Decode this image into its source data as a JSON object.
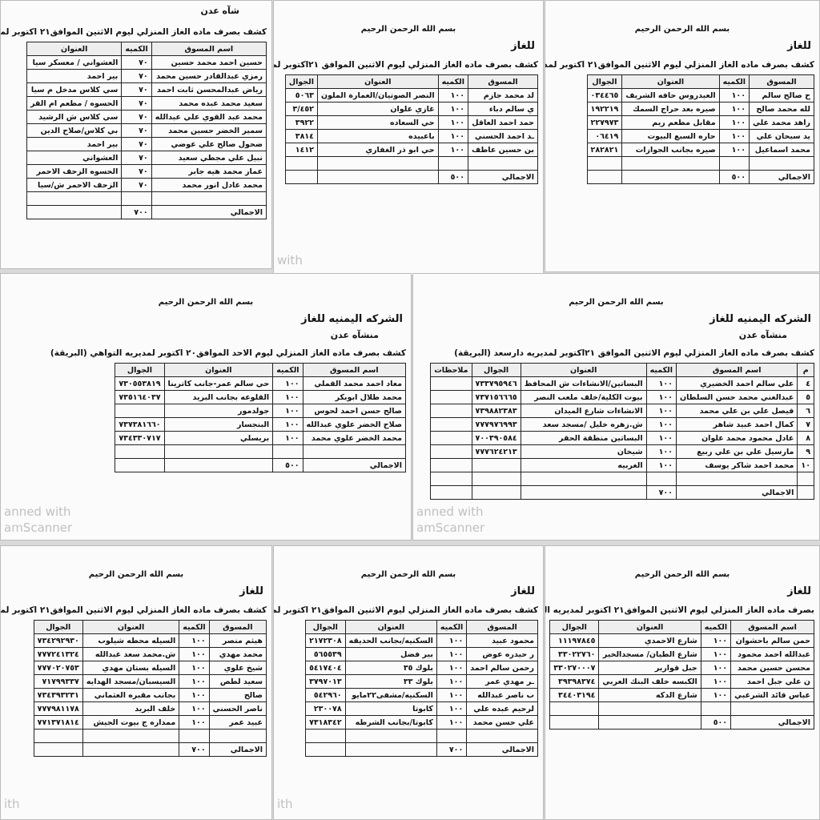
{
  "panels": [
    {
      "branch": "شآه عدن",
      "title": "كشف بصرف ماده الغاز المنزلي ليوم الاثنين  الموافق٢١ اكتوبر لمد",
      "columns": [
        "اسم المسوق",
        "الكميه",
        "العنوان"
      ],
      "rows": [
        [
          "حسين احمد محمد حسين",
          "٧٠",
          "العشواني / معسكر سيا"
        ],
        [
          "رمزي عبدالقادر حسين محمد",
          "٧٠",
          "بير احمد"
        ],
        [
          "رياض عبدالمحسن ثابت احمد",
          "٧٠",
          "سي كلاس مدخل م سيا"
        ],
        [
          "سعيد محمد عبده محمد",
          "٧٠",
          "الحسوه / مطعم ام القر"
        ],
        [
          "محمد عبد القوي علي عبدالله",
          "٧٠",
          "سي كلاس ش الرشيد"
        ],
        [
          "سمير الخضر حسين محمد",
          "٧٠",
          "بي كلاس/صلاح الدين"
        ],
        [
          "ضحول صالح علي عوضي",
          "٧٠",
          "بير احمد"
        ],
        [
          "نبيل علي مجطي سعيد",
          "٧٠",
          "العشواني"
        ],
        [
          "عمار محمد هيه جابر",
          "٧٠",
          "الحسوه الزحف الاحمر"
        ],
        [
          "محمد عادل انور محمد",
          "٧٠",
          "الزحف الاحمر ش/سيا"
        ]
      ],
      "total_label": "الاجمالي",
      "total": "٧٠٠"
    },
    {
      "basmala": "بسم الله الرحمن الرحيم",
      "company": "للغاز",
      "title": "كشف بصرف ماده الغاز المنزلي ليوم الاثنين  الموافق ٢١اكتوبر لمديريه خورمكسر",
      "columns": [
        "المسوق",
        "الكميه",
        "العنوان",
        "الجوال"
      ],
      "rows": [
        [
          "لد محمد جازم",
          "١٠٠",
          "النصر الصوتيان/العمارة الملون",
          "٥٠٦٣"
        ],
        [
          "ي سالم دباء",
          "١٠٠",
          "غازي علوان",
          "٣/٤٥٢"
        ],
        [
          "حمد احمد العاقل",
          "١٠٠",
          "حي السعاده",
          "٣٩٢٢"
        ],
        [
          "ـد احمد الحسني",
          "١٠٠",
          "باعبيده",
          "٣٨١٤"
        ],
        [
          "بن حسين عاطف",
          "١٠٠",
          "حي ابو ذر الغفاري",
          "١٤١٢"
        ]
      ],
      "total_label": "الاجمالي",
      "total": "٥٠٠",
      "watermark": [
        "with"
      ]
    },
    {
      "basmala": "بسم الله الرحمن الرحيم",
      "company": "للغاز",
      "title": "كشف بصرف ماده الغاز المنزلي ليوم الاثنين الموافق٢١ اكتوبر لمديريه صيره (البريـ",
      "columns": [
        "المسوق",
        "الكميه",
        "العنوان",
        "الجوال"
      ],
      "rows": [
        [
          "ح صالح سالم",
          "١٠٠",
          "العيدروس حافه الشريف",
          "٠٣٤٤٦٥"
        ],
        [
          "لله محمد صالح",
          "١٠٠",
          "صيره بعد حراج السمك",
          "١٩٢٢١٩"
        ],
        [
          "راهد محمد علي",
          "١٠٠",
          "مقابل مطعم ريم",
          "٢٢٧٩٧٣"
        ],
        [
          "يد سبحان علي",
          "١٠٠",
          "حاره السبع البيوت",
          "٠٦٤١٩"
        ],
        [
          "محمد اسماعيل",
          "١٠٠",
          "صيره بجانب الجوازات",
          "٢٨٢٨٢١"
        ]
      ],
      "total_label": "الاجمالي",
      "total": "٥٠٠"
    },
    {
      "basmala": "بسم الله الرحمن الرحيم",
      "company": "الشركه اليمنيه للغاز",
      "branch": "منشآه عدن",
      "title": "كشف بصرف ماده الغاز المنزلي ليوم الاحد الموافق٢٠ اكتوبر لمديريه التواهي (البريقة)",
      "columns": [
        "اسم المسوق",
        "الكميه",
        "العنوان",
        "الجوال"
      ],
      "rows": [
        [
          "معاد احمد محمد القملي",
          "١٠٠",
          "حي سالم عمر-جانب كاترينا",
          "٧٣٠٥٥٣٨١٩"
        ],
        [
          "محمد طلال ابوبكر",
          "١٠٠",
          "القلوعه بجانب البريد",
          "٧٣٥١٦٤٠٣٧"
        ],
        [
          "صالح حسن احمد لحوس",
          "١٠٠",
          "جولدمور",
          null
        ],
        [
          "صلاح الخضر علوي عبدالله",
          "١٠٠",
          "البنجسار",
          "٧٣٧٣٨١٦٦٠"
        ],
        [
          "محمد الخضر علوي محمد",
          "١٠٠",
          "بريسلي",
          "٧٣٤٣٣٠٧١٧"
        ]
      ],
      "total_label": "الاجمالي",
      "total": "٥٠٠",
      "watermark": [
        "anned with",
        "amScanner"
      ]
    },
    {
      "basmala": "بسم الله الرحمن الرحيم",
      "company": "الشركه اليمنيه للغاز",
      "branch": "منشآه عدن",
      "title": "كشف بصرف ماده الغاز المنزلي ليوم الاثنين الموافق ٢١اكتوبر لمديريه دارسعد (البريقة)",
      "columns": [
        "م",
        "اسم المسوق",
        "الكميه",
        "العنوان",
        "الجوال",
        "ملاحظات"
      ],
      "rows": [
        [
          "٤",
          "علي سالم احمد الخضيري",
          "١٠٠",
          "البساتين/الانشاءات ش المحافظ",
          "٧٣٣٧٩٥٩٤٦",
          null
        ],
        [
          "٥",
          "عبدالغني محمد حسن السلطان",
          "١٠٠",
          "بيوت الكلية/خلف ملعب النصر",
          "٧٣٧١٥٦٦٦٥",
          null
        ],
        [
          "٦",
          "فيصل علي بن علي محمد",
          "١٠٠",
          "الانشاءات شارع الميدان",
          "٧٣٩٨٨٢٣٨٣",
          null
        ],
        [
          "٧",
          "كمال احمد عبيد شاهر",
          "١٠٠",
          "ش.زهره خليل /مسجد سعد",
          "٧٧٧٩٧٦٩٩٣",
          null
        ],
        [
          "٨",
          "عادل محمود محمد علوان",
          "١٠٠",
          "البساتين منطقة الحقر",
          "٧٠٠٣٩٠٥٨٤",
          null
        ],
        [
          "٩",
          "مارسيل علي بن علي ربيع",
          "١٠٠",
          "شيخان",
          "٧٧٧٦٢٤٢١٣",
          null
        ],
        [
          "١٠",
          "محمد احمد شاكر يوسف",
          "١٠٠",
          "الغربيه",
          null,
          null
        ]
      ],
      "total_label": "الاجمالي",
      "total": "٧٠٠",
      "watermark": [
        "anned with",
        "amScanner"
      ]
    },
    {
      "basmala": "بسم الله الرحمن الرحيم",
      "company": "للغاز",
      "title": "كشف بصرف ماده الغاز المنزلي ليوم الاثنين الموافق٢١ اكتوبر لمديريه الشيخ عثمان (البر",
      "columns": [
        "المسوق",
        "الكميه",
        "العنوان",
        "الجوال"
      ],
      "rows": [
        [
          "هيثم منصر",
          "١٠٠",
          "السيله محطه شيلوب",
          "٧٣٤٢٩٢٩٣٠"
        ],
        [
          "محمد مهدي",
          "١٠٠",
          "ش.محمد سعد عبدالله",
          "٧٧٧٢٤١٣٢٤"
        ],
        [
          "شيخ علوي",
          "١٠٠",
          "السيله بستان مهدي",
          "٧٧٧٠٢٠٧٥٣"
        ],
        [
          "سعيد لطص",
          "١٠٠",
          "السيسبان/مسجد الهدايه",
          "٧١٧٩٩٣٣٧"
        ],
        [
          "صالح",
          "١٠٠",
          "بجانب مقبره العثماني",
          "٧٣٤٣٩٣٢٣١"
        ],
        [
          "ناصر الحسني",
          "١٠٠",
          "خلف البريد",
          "٧٧٧٩٨١١٧٨"
        ],
        [
          "عبيد عمر",
          "١٠٠",
          "ممداره ج بيوت الجيش",
          "٧٧١٣٧١٨١٤"
        ]
      ],
      "total_label": "الاجمالي",
      "total": "٧٠٠",
      "watermark": [
        "ith"
      ]
    },
    {
      "basmala": "بسم الله الرحمن الرحيم",
      "company": "للغاز",
      "title": "كشف بصرف ماده الغاز المنزلي ليوم الاثنين الموافق٢١ اكتوبر لمديريه المنصوره (البر",
      "columns": [
        "المسوق",
        "الكميه",
        "العنوان",
        "الجوال"
      ],
      "rows": [
        [
          "محمود عبيد",
          "١٠٠",
          "السكنيه/بجانب الحديقه",
          "٢١٧٢٣٠٨"
        ],
        [
          "ر حيدره عوض",
          "١٠٠",
          "بير فضل",
          "٥٦٥٥٣٩"
        ],
        [
          "رحمن سالم احمد",
          "١٠٠",
          "بلوك ٣٥",
          "٥٤١٧٤٠٤"
        ],
        [
          "ـر مهدي عمر",
          "١٠٠",
          "بلوك ٣٣",
          "٣٧٩٧٠١٣"
        ],
        [
          "ب ناصر عبدالله",
          "١٠٠",
          "السكنيه/مشفى٢٢مايو",
          "٥٤٢٩٦٠"
        ],
        [
          "لرحيم عبده علي",
          "١٠٠",
          "كابوتا",
          "٢٣٠٠٧٨"
        ],
        [
          "علي حسن محمد",
          "١٠٠",
          "كابوتا/بجانب الشرطه",
          "٧٣١٨٣٤٢"
        ]
      ],
      "total_label": "الاجمالي",
      "total": "٧٠٠",
      "watermark": [
        "ith"
      ]
    },
    {
      "basmala": "بسم الله الرحمن الرحيم",
      "company": "للغاز",
      "title": "بصرف ماده الغاز المنزلي ليوم الاثنين الموافق٢١ اكتوبر لمديريه المعلا (البريقة)",
      "columns": [
        "اسم المسوق",
        "الكميه",
        "العنوان",
        "الجوال"
      ],
      "rows": [
        [
          "حمن سالم باحشوان",
          "١٠٠",
          "شارع الاحمدي",
          "١١١٩٧٨٤٥"
        ],
        [
          "عبدالله احمد محمود",
          "١٠٠",
          "شارع الطيان/ مسجدالخير",
          "٣٣٠٢٢٧٦٠"
        ],
        [
          "محسن حسين محمد",
          "١٠٠",
          "جبل قوارير",
          "٣٣٠٢٧٠٠٠٧"
        ],
        [
          "ن علي جبل احمد",
          "١٠٠",
          "الكبسه خلف البنك العربي",
          "٣٩٣٩٨٣٧٤"
        ],
        [
          "عباس قائد الشرعبي",
          "١٠٠",
          "شارع الدكه",
          "٣٤٤٠٣١٩٤"
        ]
      ],
      "total_label": "الاجمالي",
      "total": "٥٠٠"
    }
  ]
}
